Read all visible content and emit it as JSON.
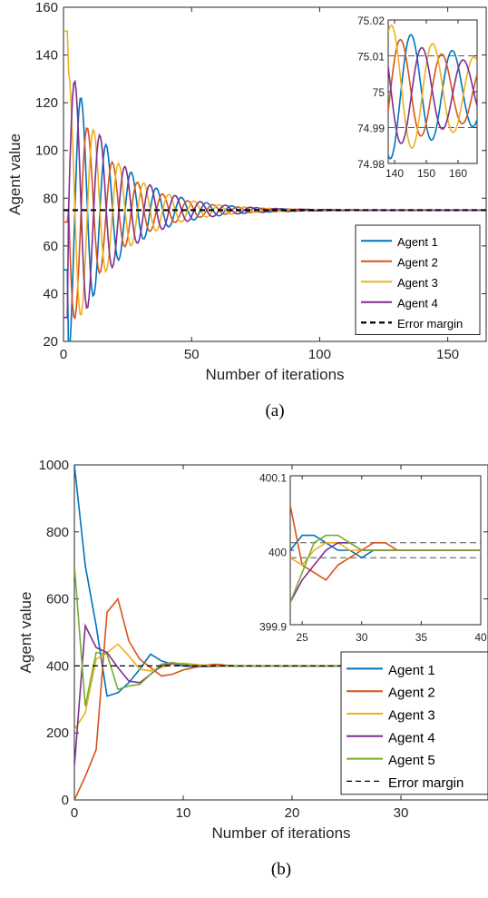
{
  "chart_data": [
    {
      "type": "line",
      "caption": "(a)",
      "xlabel": "Number of iterations",
      "ylabel": "Agent value",
      "xlim": [
        0,
        165
      ],
      "ylim": [
        20,
        160
      ],
      "xticks": [
        0,
        50,
        100,
        150
      ],
      "yticks": [
        20,
        40,
        60,
        80,
        100,
        120,
        140,
        160
      ],
      "legend_position": "bottom-right",
      "colors": [
        "#0072BD",
        "#D95319",
        "#EDB120",
        "#7E2F8E"
      ],
      "series": [
        {
          "name": "Agent 1",
          "init": 50,
          "amp": 62,
          "period": 9.8,
          "phase": 3.14159,
          "tau": 18
        },
        {
          "name": "Agent 2",
          "init": 70,
          "amp": 52,
          "period": 9.8,
          "phase": 1.5708,
          "tau": 18
        },
        {
          "name": "Agent 3",
          "init": 150,
          "amp": 58,
          "period": 9.8,
          "phase": 0.0,
          "tau": 18
        },
        {
          "name": "Agent 4",
          "init": 30,
          "amp": 62,
          "period": 9.8,
          "phase": 4.71239,
          "tau": 18
        }
      ],
      "reference": {
        "name": "Error margin",
        "value": 75,
        "style": "bold-dashed"
      },
      "inset": {
        "xlim": [
          138,
          166
        ],
        "ylim": [
          74.98,
          75.02
        ],
        "xticks": [
          140,
          150,
          160
        ],
        "yticks": [
          74.98,
          74.99,
          75,
          75.01,
          75.02
        ],
        "yticklabels": [
          "74.98",
          "74.99",
          "75",
          "75.01",
          "75.02"
        ],
        "bands": [
          74.99,
          75.01
        ],
        "series_params": [
          {
            "amp": 0.019,
            "phase": 2.78
          },
          {
            "amp": 0.016,
            "phase": 4.38
          },
          {
            "amp": 0.019,
            "phase": -0.52
          },
          {
            "amp": 0.016,
            "phase": 1.12
          }
        ],
        "period": 13.0,
        "tau": 40
      }
    },
    {
      "type": "line",
      "caption": "(b)",
      "xlabel": "Number of iterations",
      "ylabel": "Agent value",
      "xlim": [
        0,
        38
      ],
      "ylim": [
        0,
        1000
      ],
      "xticks": [
        0,
        10,
        20,
        30
      ],
      "yticks": [
        0,
        200,
        400,
        600,
        800,
        1000
      ],
      "legend_position": "bottom-right",
      "colors": [
        "#0072BD",
        "#D95319",
        "#EDB120",
        "#7E2F8E",
        "#77AC30"
      ],
      "series": [
        {
          "name": "Agent 1",
          "x": [
            0,
            1,
            2,
            3,
            4,
            5,
            6,
            7,
            8,
            9,
            10,
            11,
            12,
            13,
            14,
            15,
            20,
            25,
            30,
            38
          ],
          "y": [
            1000,
            700,
            520,
            310,
            320,
            350,
            390,
            435,
            415,
            405,
            400,
            398,
            399,
            400,
            400,
            400,
            400,
            400,
            400,
            400
          ]
        },
        {
          "name": "Agent 2",
          "x": [
            0,
            1,
            2,
            3,
            4,
            5,
            6,
            7,
            8,
            9,
            10,
            11,
            12,
            13,
            14,
            15,
            20,
            25,
            30,
            38
          ],
          "y": [
            0,
            70,
            150,
            560,
            600,
            475,
            420,
            395,
            370,
            375,
            388,
            395,
            402,
            405,
            402,
            400,
            400,
            400,
            400,
            400
          ]
        },
        {
          "name": "Agent 3",
          "x": [
            0,
            1,
            2,
            3,
            4,
            5,
            6,
            7,
            8,
            9,
            10,
            11,
            12,
            13,
            14,
            15,
            20,
            25,
            30,
            38
          ],
          "y": [
            210,
            260,
            420,
            440,
            465,
            430,
            390,
            385,
            395,
            405,
            408,
            405,
            402,
            400,
            400,
            400,
            400,
            400,
            400,
            400
          ]
        },
        {
          "name": "Agent 4",
          "x": [
            0,
            1,
            2,
            3,
            4,
            5,
            6,
            7,
            8,
            9,
            10,
            11,
            12,
            13,
            14,
            15,
            20,
            25,
            30,
            38
          ],
          "y": [
            100,
            520,
            455,
            440,
            395,
            355,
            350,
            375,
            400,
            408,
            405,
            400,
            398,
            399,
            400,
            400,
            400,
            400,
            400,
            400
          ]
        },
        {
          "name": "Agent 5",
          "x": [
            0,
            1,
            2,
            3,
            4,
            5,
            6,
            7,
            8,
            9,
            10,
            11,
            12,
            13,
            14,
            15,
            20,
            25,
            30,
            38
          ],
          "y": [
            700,
            280,
            440,
            435,
            330,
            340,
            345,
            375,
            405,
            410,
            405,
            402,
            400,
            400,
            400,
            400,
            400,
            400,
            400,
            400
          ]
        }
      ],
      "reference": {
        "name": "Error margin",
        "value": 400,
        "style": "dashed"
      },
      "inset": {
        "xlim": [
          24,
          40
        ],
        "ylim": [
          399.9,
          400.1
        ],
        "xticks": [
          25,
          30,
          35,
          40
        ],
        "yticks": [
          399.9,
          400,
          400.1
        ],
        "yticklabels": [
          "399.9",
          "400",
          "400.1"
        ],
        "bands": [
          399.99,
          400.01
        ],
        "series": [
          {
            "x": [
              24,
              25,
              26,
              27,
              28,
              29,
              30,
              31,
              32,
              33,
              34,
              40
            ],
            "y": [
              400,
              400.02,
              400.02,
              400.01,
              400,
              400,
              399.99,
              400,
              400,
              400,
              400,
              400
            ]
          },
          {
            "x": [
              24,
              25,
              26,
              27,
              28,
              29,
              30,
              31,
              32,
              33,
              34,
              40
            ],
            "y": [
              400.06,
              399.98,
              399.97,
              399.96,
              399.98,
              399.99,
              400,
              400.01,
              400.01,
              400,
              400,
              400
            ]
          },
          {
            "x": [
              24,
              25,
              26,
              27,
              28,
              29,
              30,
              31,
              32,
              33,
              34,
              40
            ],
            "y": [
              399.99,
              399.98,
              400,
              400.01,
              400.01,
              400,
              400,
              400,
              400,
              400,
              400,
              400
            ]
          },
          {
            "x": [
              24,
              25,
              26,
              27,
              28,
              29,
              30,
              31,
              32,
              33,
              34,
              40
            ],
            "y": [
              399.93,
              399.96,
              399.98,
              400,
              400.01,
              400.01,
              400,
              400,
              400,
              400,
              400,
              400
            ]
          },
          {
            "x": [
              24,
              25,
              26,
              27,
              28,
              29,
              30,
              31,
              32,
              33,
              34,
              40
            ],
            "y": [
              399.93,
              399.97,
              400.01,
              400.02,
              400.02,
              400.01,
              400,
              400,
              400,
              400,
              400,
              400
            ]
          }
        ]
      }
    }
  ]
}
